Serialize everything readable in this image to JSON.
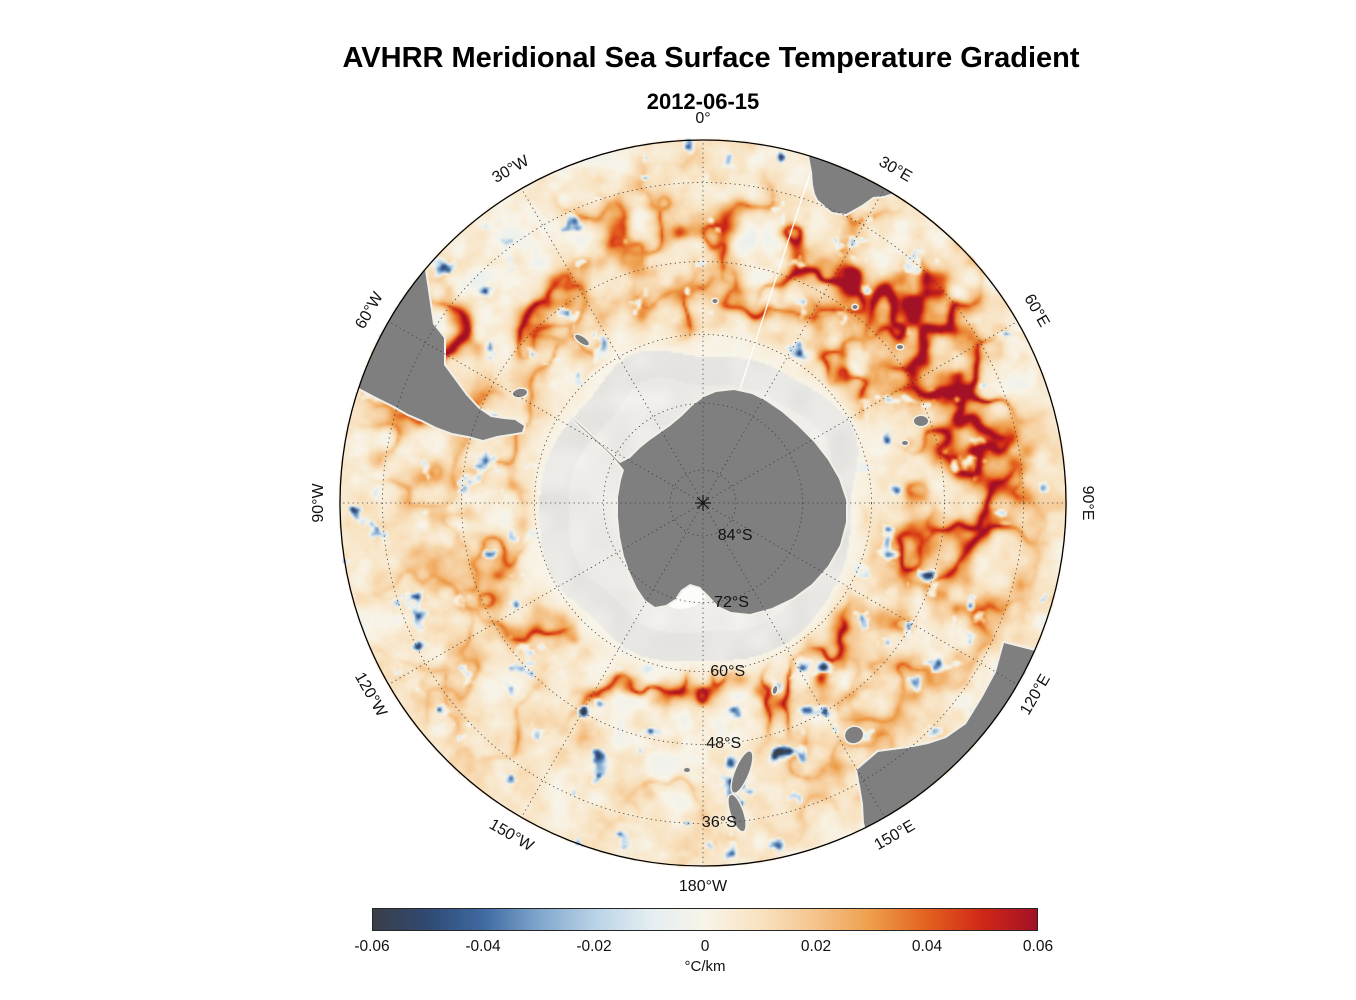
{
  "title": "AVHRR Meridional Sea Surface Temperature Gradient",
  "subtitle": "2012-06-15",
  "map": {
    "longitude_labels": [
      {
        "text": "0°",
        "lon": 0
      },
      {
        "text": "30°E",
        "lon": 30
      },
      {
        "text": "60°E",
        "lon": 60
      },
      {
        "text": "90°E",
        "lon": 90
      },
      {
        "text": "120°E",
        "lon": 120
      },
      {
        "text": "150°E",
        "lon": 150
      },
      {
        "text": "180°W",
        "lon": 180
      },
      {
        "text": "150°W",
        "lon": -150
      },
      {
        "text": "120°W",
        "lon": -120
      },
      {
        "text": "90°W",
        "lon": -90
      },
      {
        "text": "60°W",
        "lon": -60
      },
      {
        "text": "30°W",
        "lon": -30
      }
    ],
    "latitude_labels": [
      {
        "text": "84°S",
        "lat": -84
      },
      {
        "text": "72°S",
        "lat": -72
      },
      {
        "text": "60°S",
        "lat": -60
      },
      {
        "text": "48°S",
        "lat": -48
      },
      {
        "text": "36°S",
        "lat": -36
      }
    ],
    "grid": {
      "lat_circles": [
        -84,
        -72,
        -60,
        -48,
        -36
      ],
      "lon_step_deg": 30,
      "outer_lat": -30
    },
    "colors": {
      "land": "#7f7f7f",
      "ice": "#e8e7e4",
      "background": "#ffffff"
    }
  },
  "colorbar": {
    "label": "°C/km",
    "ticks": [
      "-0.06",
      "-0.04",
      "-0.02",
      "0",
      "0.02",
      "0.04",
      "0.06"
    ],
    "min": -0.06,
    "max": 0.06,
    "stops": [
      "#3a3e47",
      "#2f4a74",
      "#3f6aa3",
      "#7fa6cd",
      "#b9d2e6",
      "#e4eef2",
      "#f8f4e8",
      "#f8e2c0",
      "#f5c48c",
      "#ee9e4a",
      "#e4611f",
      "#d02817",
      "#a31126"
    ]
  },
  "chart_data": {
    "type": "heatmap",
    "title": "AVHRR Meridional Sea Surface Temperature Gradient",
    "subtitle": "2012-06-15",
    "projection": "south-polar stereographic",
    "variable": "meridional sea surface temperature gradient",
    "units": "°C/km",
    "value_range": [
      -0.06,
      0.06
    ],
    "colorbar_ticks": [
      -0.06,
      -0.04,
      -0.02,
      0,
      0.02,
      0.04,
      0.06
    ],
    "colorbar_position": "bottom",
    "latitude_circles_deg_S": [
      84,
      72,
      60,
      48,
      36
    ],
    "longitude_spoke_step_deg": 30,
    "outer_boundary_latitude_deg_S": 30,
    "notes": "Strong positive (red) SST-gradient filaments along the Antarctic Circumpolar Current and Agulhas/Brazil-Malvinas sectors; gray land; light-gray winter sea-ice zone around Antarctica."
  }
}
